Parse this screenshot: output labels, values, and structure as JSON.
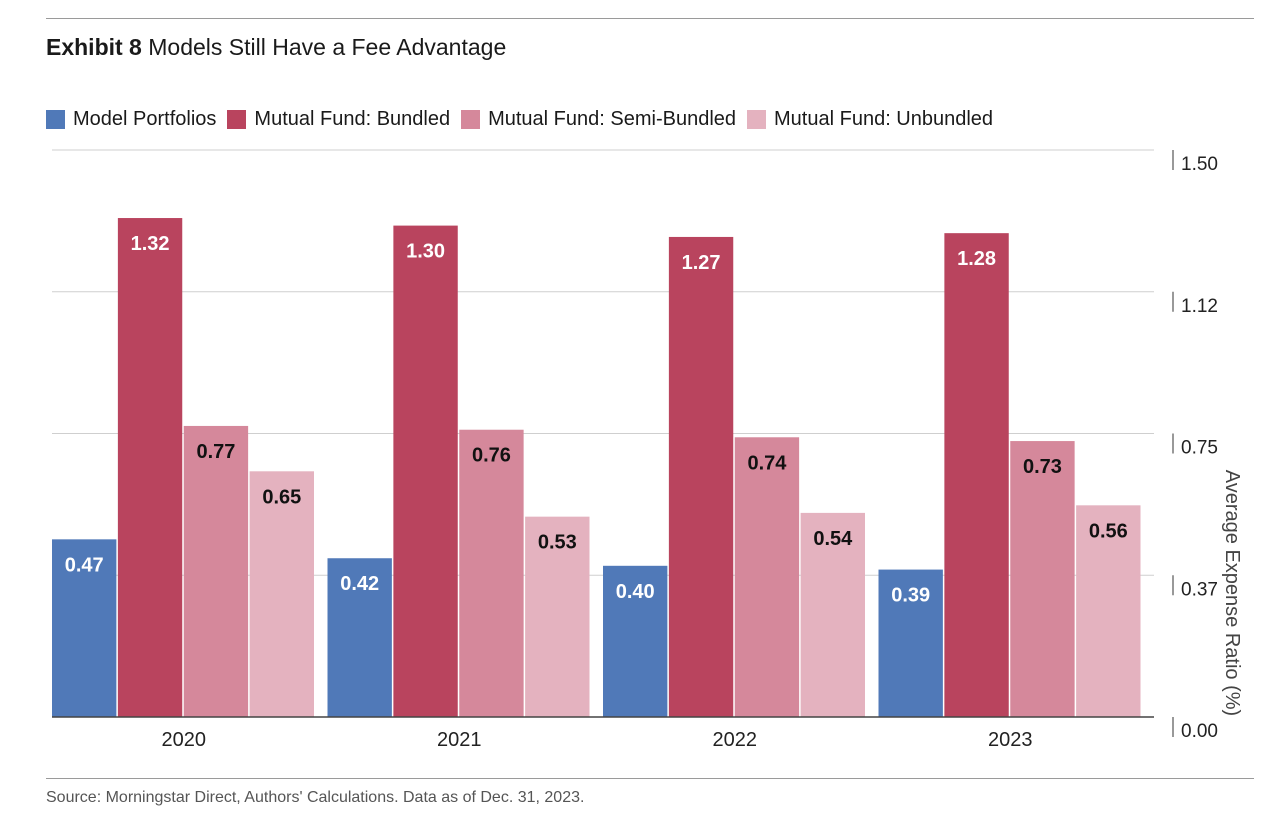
{
  "title": {
    "exhibit": "Exhibit 8",
    "text": "Models Still Have a Fee Advantage"
  },
  "source": "Source: Morningstar Direct, Authors' Calculations. Data as of Dec. 31, 2023.",
  "chart_data": {
    "type": "bar",
    "categories": [
      "2020",
      "2021",
      "2022",
      "2023"
    ],
    "series": [
      {
        "name": "Model Portfolios",
        "color": "#5079b8",
        "values": [
          0.47,
          0.42,
          0.4,
          0.39
        ],
        "labels": [
          "0.47",
          "0.42",
          "0.40",
          "0.39"
        ],
        "label_color": "#ffffff"
      },
      {
        "name": "Mutual Fund: Bundled",
        "color": "#b9445e",
        "values": [
          1.32,
          1.3,
          1.27,
          1.28
        ],
        "labels": [
          "1.32",
          "1.30",
          "1.27",
          "1.28"
        ],
        "label_color": "#ffffff"
      },
      {
        "name": "Mutual Fund: Semi-Bundled",
        "color": "#d5889b",
        "values": [
          0.77,
          0.76,
          0.74,
          0.73
        ],
        "labels": [
          "0.77",
          "0.76",
          "0.74",
          "0.73"
        ],
        "label_color": "#111111"
      },
      {
        "name": "Mutual Fund: Unbundled",
        "color": "#e4b2bf",
        "values": [
          0.65,
          0.53,
          0.54,
          0.56
        ],
        "labels": [
          "0.65",
          "0.53",
          "0.54",
          "0.56"
        ],
        "label_color": "#111111"
      }
    ],
    "ylabel": "Average Expense Ratio (%)",
    "ylim": [
      0,
      1.5
    ],
    "yticks": [
      0,
      0.375,
      0.75,
      1.125,
      1.5
    ],
    "ytick_labels": [
      "0.00",
      "0.37",
      "0.75",
      "1.12",
      "1.50"
    ],
    "y_axis_side": "right",
    "grid": true,
    "legend": "top-left"
  }
}
